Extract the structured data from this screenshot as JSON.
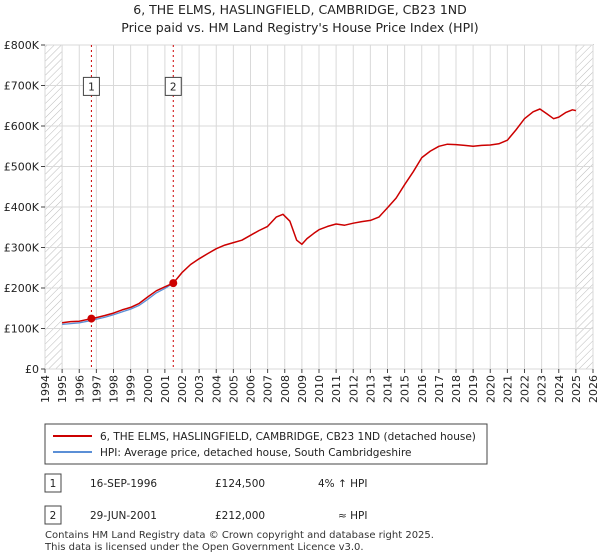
{
  "chart_data": {
    "type": "line",
    "title": "6, THE ELMS, HASLINGFIELD, CAMBRIDGE, CB23 1ND",
    "subtitle": "Price paid vs. HM Land Registry's House Price Index (HPI)",
    "xlabel": "",
    "ylabel": "",
    "xlim": [
      1994,
      2026
    ],
    "ylim": [
      0,
      800000
    ],
    "grid": true,
    "y_ticks": [
      {
        "value": 0,
        "label": "£0"
      },
      {
        "value": 100000,
        "label": "£100K"
      },
      {
        "value": 200000,
        "label": "£200K"
      },
      {
        "value": 300000,
        "label": "£300K"
      },
      {
        "value": 400000,
        "label": "£400K"
      },
      {
        "value": 500000,
        "label": "£500K"
      },
      {
        "value": 600000,
        "label": "£600K"
      },
      {
        "value": 700000,
        "label": "£700K"
      },
      {
        "value": 800000,
        "label": "£800K"
      }
    ],
    "x_ticks": [
      "1994",
      "1995",
      "1996",
      "1997",
      "1998",
      "1999",
      "2000",
      "2001",
      "2002",
      "2003",
      "2004",
      "2005",
      "2006",
      "2007",
      "2008",
      "2009",
      "2010",
      "2011",
      "2012",
      "2013",
      "2014",
      "2015",
      "2016",
      "2017",
      "2018",
      "2019",
      "2020",
      "2021",
      "2022",
      "2023",
      "2024",
      "2025",
      "2026"
    ],
    "hpi_end_year": 1996.71,
    "series": [
      {
        "name": "6, THE ELMS, HASLINGFIELD, CAMBRIDGE, CB23 1ND (detached house)",
        "color": "#cc0000",
        "x": [
          1995.0,
          1995.5,
          1996.0,
          1996.71,
          1997.0,
          1997.5,
          1998.0,
          1998.5,
          1999.0,
          1999.5,
          2000.0,
          2000.5,
          2001.0,
          2001.49,
          2002.0,
          2002.5,
          2003.0,
          2003.5,
          2004.0,
          2004.5,
          2005.0,
          2005.5,
          2006.0,
          2006.5,
          2007.0,
          2007.5,
          2007.9,
          2008.3,
          2008.7,
          2009.0,
          2009.3,
          2009.7,
          2010.0,
          2010.5,
          2011.0,
          2011.5,
          2012.0,
          2012.5,
          2013.0,
          2013.5,
          2014.0,
          2014.5,
          2015.0,
          2015.5,
          2016.0,
          2016.5,
          2017.0,
          2017.5,
          2018.0,
          2018.5,
          2019.0,
          2019.5,
          2020.0,
          2020.5,
          2021.0,
          2021.5,
          2022.0,
          2022.5,
          2022.9,
          2023.3,
          2023.7,
          2024.0,
          2024.4,
          2024.8,
          2025.0
        ],
        "values": [
          114000,
          117000,
          118000,
          124500,
          127000,
          132000,
          138000,
          146000,
          152000,
          162000,
          178000,
          193000,
          203000,
          212000,
          238000,
          258000,
          272000,
          285000,
          297000,
          306000,
          312000,
          318000,
          330000,
          342000,
          352000,
          375000,
          382000,
          365000,
          318000,
          308000,
          322000,
          335000,
          344000,
          352000,
          358000,
          355000,
          360000,
          364000,
          367000,
          375000,
          398000,
          422000,
          455000,
          487000,
          522000,
          538000,
          550000,
          555000,
          554000,
          552000,
          550000,
          552000,
          553000,
          556000,
          565000,
          590000,
          618000,
          635000,
          642000,
          630000,
          618000,
          622000,
          633000,
          640000,
          638000
        ]
      },
      {
        "name": "HPI: Average price, detached house, South Cambridgeshire",
        "color": "#5b8fd6",
        "x": [
          1995.0,
          1995.5,
          1996.0,
          1996.71,
          1997.0,
          1997.5,
          1998.0,
          1998.5,
          1999.0,
          1999.5,
          2000.0,
          2000.5,
          2001.0,
          2001.49
        ],
        "values": [
          110000,
          112000,
          114000,
          119700,
          123000,
          128000,
          134000,
          141000,
          148000,
          157000,
          172000,
          188000,
          199000,
          212000
        ]
      }
    ],
    "annotations": [
      {
        "label": "1",
        "x": 1996.71
      },
      {
        "label": "2",
        "x": 2001.49
      }
    ],
    "sales": [
      {
        "x": 1996.71,
        "value": 124500
      },
      {
        "x": 2001.49,
        "value": 212000
      }
    ],
    "legend": "bottom"
  },
  "legend_items": [
    {
      "label": "6, THE ELMS, HASLINGFIELD, CAMBRIDGE, CB23 1ND (detached house)"
    },
    {
      "label": "HPI: Average price, detached house, South Cambridgeshire"
    }
  ],
  "transactions": [
    {
      "num": "1",
      "date": "16-SEP-1996",
      "price": "£124,500",
      "hpi": "4% ↑ HPI"
    },
    {
      "num": "2",
      "date": "29-JUN-2001",
      "price": "£212,000",
      "hpi": "≈ HPI"
    }
  ],
  "footer": {
    "line1": "Contains HM Land Registry data © Crown copyright and database right 2025.",
    "line2": "This data is licensed under the Open Government Licence v3.0."
  }
}
